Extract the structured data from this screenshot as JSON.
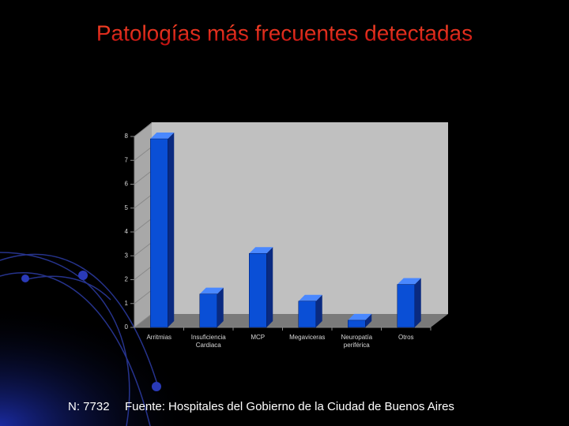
{
  "title": "Patologías más frecuentes detectadas",
  "chart_data": {
    "type": "bar3d",
    "categories": [
      "Arritmias",
      "Insuficiencia Cardiaca",
      "MCP",
      "Megaviceras",
      "Neuropatía periférica",
      "Otros"
    ],
    "values": [
      7.9,
      1.4,
      3.1,
      1.1,
      0.3,
      1.8
    ],
    "color": "#0a4fd6",
    "ylim": [
      0,
      8
    ],
    "yticks": [
      0,
      1,
      2,
      3,
      4,
      5,
      6,
      7,
      8
    ],
    "grid": false
  },
  "footer": {
    "note": "N: 7732",
    "source": "Fuente: Hospitales del Gobierno de la Ciudad de Buenos Aires"
  }
}
